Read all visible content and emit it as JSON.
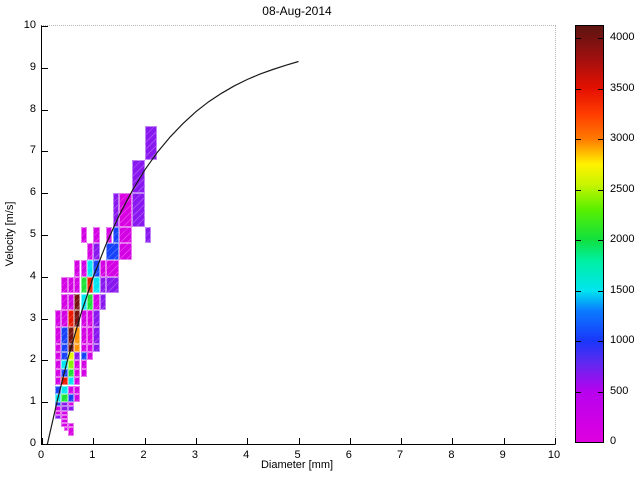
{
  "title": "08-Aug-2014",
  "axes": {
    "xlabel": "Diameter [mm]",
    "ylabel": "Velocity [m/s]",
    "x_range": [
      0,
      10
    ],
    "y_range": [
      0,
      10
    ],
    "x_ticks": [
      0,
      1,
      2,
      3,
      4,
      5,
      6,
      7,
      8,
      9,
      10
    ],
    "y_ticks": [
      0,
      1,
      2,
      3,
      4,
      5,
      6,
      7,
      8,
      9,
      10
    ]
  },
  "colorbar": {
    "ticks": [
      0,
      500,
      1000,
      1500,
      2000,
      2500,
      3000,
      3500,
      4000
    ],
    "max": 4120,
    "gradient": [
      [
        0,
        "#DF00DF"
      ],
      [
        500,
        "#B702EE"
      ],
      [
        800,
        "#5A2BF0"
      ],
      [
        1000,
        "#1A36FA"
      ],
      [
        1300,
        "#0A7BFF"
      ],
      [
        1500,
        "#00E5F0"
      ],
      [
        1800,
        "#00F0A0"
      ],
      [
        2000,
        "#10E040"
      ],
      [
        2300,
        "#58F000"
      ],
      [
        2550,
        "#C8F400"
      ],
      [
        2750,
        "#FFF200"
      ],
      [
        3000,
        "#FF7A00"
      ],
      [
        3250,
        "#FF3C00"
      ],
      [
        3500,
        "#E51000"
      ],
      [
        3800,
        "#A01010"
      ],
      [
        4120,
        "#5C1410"
      ]
    ]
  },
  "chart_data": {
    "type": "heatmap",
    "title": "08-Aug-2014",
    "xlabel": "Diameter [mm]",
    "ylabel": "Velocity [m/s]",
    "x_range": [
      0,
      10
    ],
    "y_range": [
      0,
      10
    ],
    "colorbar_range": [
      0,
      4120
    ],
    "legend": "none",
    "grid": "off",
    "cells_format": [
      "d_min_mm",
      "d_max_mm",
      "v_min_ms",
      "v_max_ms",
      "count"
    ],
    "cells": [
      [
        0.5,
        0.625,
        0.2,
        0.4,
        80
      ],
      [
        0.4375,
        0.5,
        0.3,
        0.4,
        150
      ],
      [
        0.375,
        0.5,
        0.4,
        0.5,
        150
      ],
      [
        0.5,
        0.625,
        0.4,
        0.5,
        150
      ],
      [
        0.375,
        0.5,
        0.5,
        0.6,
        150
      ],
      [
        0.25,
        0.375,
        0.6,
        0.7,
        650
      ],
      [
        0.375,
        0.5,
        0.6,
        0.7,
        150
      ],
      [
        0.25,
        0.375,
        0.7,
        0.8,
        150
      ],
      [
        0.375,
        0.5,
        0.7,
        0.8,
        150
      ],
      [
        0.25,
        0.375,
        0.8,
        0.9,
        150
      ],
      [
        0.375,
        0.5,
        0.8,
        0.9,
        650
      ],
      [
        0.5,
        0.625,
        0.8,
        0.9,
        650
      ],
      [
        0.25,
        0.375,
        0.9,
        1.0,
        1050
      ],
      [
        0.375,
        0.5,
        0.9,
        1.0,
        650
      ],
      [
        0.5,
        0.625,
        0.9,
        1.0,
        150
      ],
      [
        0.25,
        0.375,
        1.0,
        1.2,
        1500
      ],
      [
        0.375,
        0.5,
        1.0,
        1.2,
        2050
      ],
      [
        0.5,
        0.625,
        1.0,
        1.2,
        1050
      ],
      [
        0.625,
        0.75,
        1.0,
        1.2,
        150
      ],
      [
        0.25,
        0.375,
        1.2,
        1.4,
        1050
      ],
      [
        0.375,
        0.5,
        1.2,
        1.4,
        1500
      ],
      [
        0.5,
        0.625,
        1.2,
        1.4,
        150
      ],
      [
        0.625,
        0.75,
        1.2,
        1.4,
        150
      ],
      [
        0.25,
        0.375,
        1.4,
        1.6,
        150
      ],
      [
        0.375,
        0.5,
        1.4,
        1.6,
        3450
      ],
      [
        0.5,
        0.625,
        1.4,
        1.6,
        1500
      ],
      [
        0.625,
        0.75,
        1.4,
        1.6,
        150
      ],
      [
        0.25,
        0.375,
        1.6,
        1.8,
        150
      ],
      [
        0.375,
        0.5,
        1.6,
        1.8,
        1050
      ],
      [
        0.5,
        0.625,
        1.6,
        1.8,
        2050
      ],
      [
        0.625,
        0.75,
        1.6,
        1.8,
        80
      ],
      [
        0.75,
        0.875,
        1.6,
        1.8,
        150
      ],
      [
        0.25,
        0.375,
        1.8,
        2.0,
        150
      ],
      [
        0.375,
        0.5,
        1.8,
        2.0,
        1500
      ],
      [
        0.5,
        0.625,
        1.8,
        2.0,
        2400
      ],
      [
        0.625,
        0.75,
        1.8,
        2.0,
        150
      ],
      [
        0.75,
        0.875,
        1.8,
        2.0,
        150
      ],
      [
        0.25,
        0.375,
        2.0,
        2.2,
        150
      ],
      [
        0.375,
        0.5,
        2.0,
        2.2,
        1050
      ],
      [
        0.5,
        0.625,
        2.0,
        2.2,
        2650
      ],
      [
        0.625,
        0.75,
        2.0,
        2.2,
        650
      ],
      [
        0.75,
        0.875,
        2.0,
        2.2,
        1050
      ],
      [
        0.875,
        1.0,
        2.0,
        2.2,
        150
      ],
      [
        0.25,
        0.375,
        2.2,
        2.4,
        150
      ],
      [
        0.375,
        0.5,
        2.2,
        2.4,
        1050
      ],
      [
        0.5,
        0.625,
        2.2,
        2.4,
        4000
      ],
      [
        0.625,
        0.75,
        2.2,
        2.4,
        2950
      ],
      [
        0.75,
        0.875,
        2.2,
        2.4,
        150
      ],
      [
        0.875,
        1.0,
        2.2,
        2.4,
        150
      ],
      [
        1.0,
        1.125,
        2.2,
        2.4,
        650
      ],
      [
        0.25,
        0.375,
        2.4,
        2.8,
        150
      ],
      [
        0.375,
        0.5,
        2.4,
        2.8,
        1050
      ],
      [
        0.5,
        0.625,
        2.4,
        2.8,
        4000
      ],
      [
        0.625,
        0.75,
        2.4,
        2.8,
        2950
      ],
      [
        0.75,
        0.875,
        2.4,
        2.8,
        150
      ],
      [
        0.875,
        1.0,
        2.4,
        2.8,
        80
      ],
      [
        1.0,
        1.125,
        2.4,
        2.8,
        650
      ],
      [
        0.25,
        0.375,
        2.8,
        3.2,
        150
      ],
      [
        0.375,
        0.5,
        2.8,
        3.2,
        150
      ],
      [
        0.5,
        0.625,
        2.8,
        3.2,
        3450
      ],
      [
        0.625,
        0.75,
        2.8,
        3.2,
        4000
      ],
      [
        0.75,
        0.875,
        2.8,
        3.2,
        150
      ],
      [
        0.875,
        1.0,
        2.8,
        3.2,
        80
      ],
      [
        1.0,
        1.125,
        2.8,
        3.2,
        650
      ],
      [
        0.375,
        0.5,
        3.2,
        3.6,
        150
      ],
      [
        0.5,
        0.625,
        3.2,
        3.6,
        150
      ],
      [
        0.625,
        0.75,
        3.2,
        3.6,
        4000
      ],
      [
        0.75,
        0.875,
        3.2,
        3.6,
        1500
      ],
      [
        0.875,
        1.0,
        3.2,
        3.6,
        2050
      ],
      [
        1.0,
        1.125,
        3.2,
        3.6,
        150
      ],
      [
        1.125,
        1.25,
        3.2,
        3.6,
        650
      ],
      [
        0.375,
        0.5,
        3.6,
        4.0,
        150
      ],
      [
        0.5,
        0.625,
        3.6,
        4.0,
        150
      ],
      [
        0.625,
        0.75,
        3.6,
        4.0,
        150
      ],
      [
        0.75,
        0.875,
        3.6,
        4.0,
        2050
      ],
      [
        0.875,
        1.0,
        3.6,
        4.0,
        3450
      ],
      [
        1.0,
        1.125,
        3.6,
        4.0,
        1500
      ],
      [
        1.125,
        1.25,
        3.6,
        4.0,
        650
      ],
      [
        1.25,
        1.5,
        3.6,
        4.0,
        650
      ],
      [
        0.625,
        0.75,
        4.0,
        4.4,
        150
      ],
      [
        0.75,
        0.875,
        4.0,
        4.4,
        150
      ],
      [
        0.875,
        1.0,
        4.0,
        4.4,
        1500
      ],
      [
        1.0,
        1.125,
        4.0,
        4.4,
        1050
      ],
      [
        1.125,
        1.25,
        4.0,
        4.4,
        150
      ],
      [
        1.25,
        1.5,
        4.0,
        4.4,
        150
      ],
      [
        0.875,
        1.0,
        4.4,
        4.8,
        150
      ],
      [
        1.0,
        1.125,
        4.4,
        4.8,
        650
      ],
      [
        1.25,
        1.5,
        4.4,
        4.8,
        1050
      ],
      [
        1.5,
        1.75,
        4.4,
        4.8,
        150
      ],
      [
        0.75,
        0.875,
        4.8,
        5.2,
        150
      ],
      [
        1.0,
        1.125,
        4.8,
        5.2,
        150
      ],
      [
        1.25,
        1.375,
        4.8,
        5.2,
        150
      ],
      [
        1.375,
        1.5,
        4.8,
        5.2,
        1050
      ],
      [
        1.5,
        1.75,
        4.8,
        5.2,
        150
      ],
      [
        2.0,
        2.125,
        4.8,
        5.2,
        650
      ],
      [
        1.375,
        1.5,
        5.2,
        6.0,
        650
      ],
      [
        1.5,
        1.75,
        5.2,
        6.0,
        80
      ],
      [
        1.75,
        2.0,
        5.2,
        6.0,
        650
      ],
      [
        1.75,
        2.0,
        6.0,
        6.8,
        650
      ],
      [
        2.0,
        2.25,
        6.8,
        7.6,
        650
      ]
    ],
    "curve": {
      "name": "terminal-velocity-curve",
      "color": "#1a1a1a",
      "points": [
        [
          0.105,
          0.0
        ],
        [
          0.3,
          1.05
        ],
        [
          0.5,
          2.02
        ],
        [
          0.75,
          3.08
        ],
        [
          1.0,
          4.0
        ],
        [
          1.25,
          4.78
        ],
        [
          1.5,
          5.46
        ],
        [
          1.75,
          6.04
        ],
        [
          2.0,
          6.55
        ],
        [
          2.25,
          6.98
        ],
        [
          2.5,
          7.35
        ],
        [
          2.75,
          7.67
        ],
        [
          3.0,
          7.95
        ],
        [
          3.25,
          8.19
        ],
        [
          3.5,
          8.39
        ],
        [
          3.75,
          8.57
        ],
        [
          4.0,
          8.72
        ],
        [
          4.25,
          8.85
        ],
        [
          4.5,
          8.96
        ],
        [
          4.75,
          9.06
        ],
        [
          5.0,
          9.15
        ]
      ]
    }
  }
}
